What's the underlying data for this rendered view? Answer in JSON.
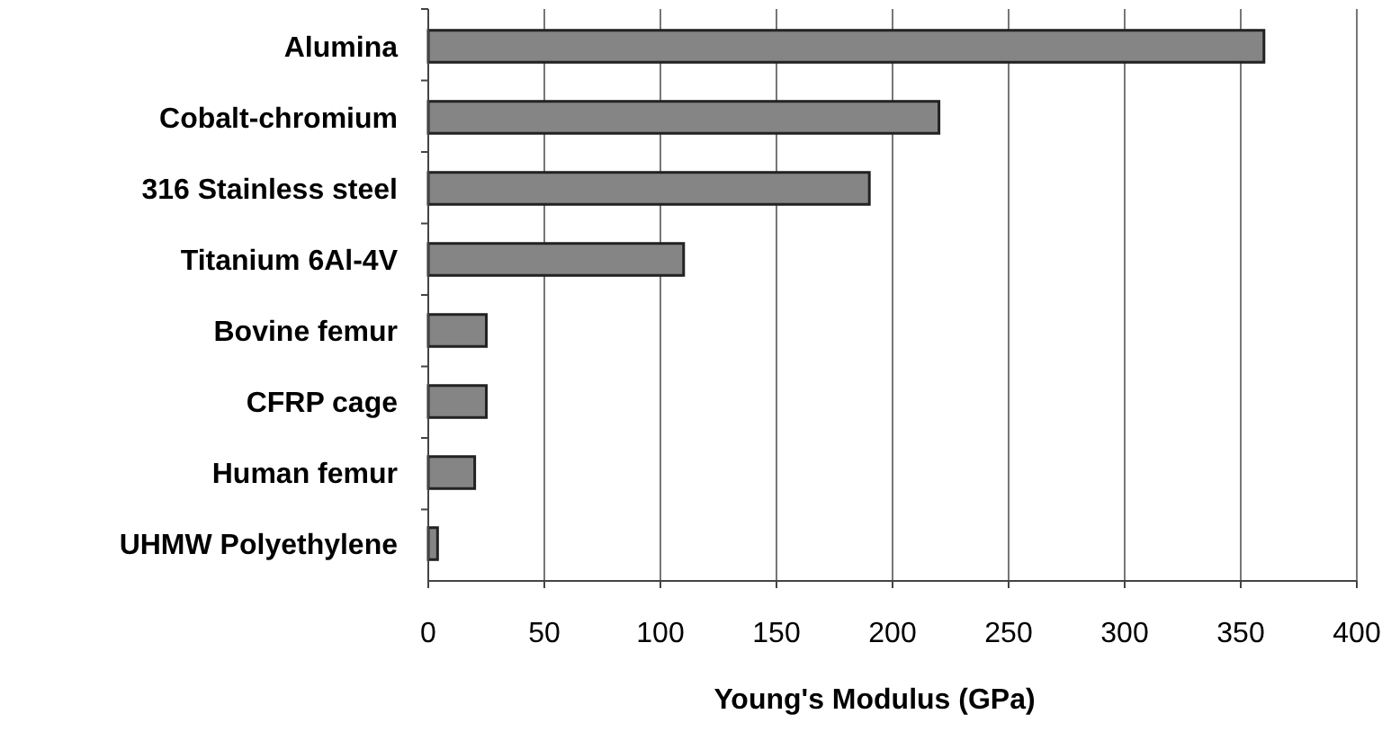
{
  "chart_data": {
    "type": "bar",
    "orientation": "horizontal",
    "xlabel": "Young's Modulus (GPa)",
    "categories": [
      "Alumina",
      "Cobalt-chromium",
      "316 Stainless steel",
      "Titanium 6Al-4V",
      "Bovine femur",
      "CFRP cage",
      "Human femur",
      "UHMW Polyethylene"
    ],
    "values": [
      360,
      220,
      190,
      110,
      25,
      25,
      20,
      4
    ],
    "color": "#858585",
    "xlim": [
      0,
      400
    ],
    "xticks": [
      0,
      50,
      100,
      150,
      200,
      250,
      300,
      350,
      400
    ],
    "grid": "x"
  }
}
